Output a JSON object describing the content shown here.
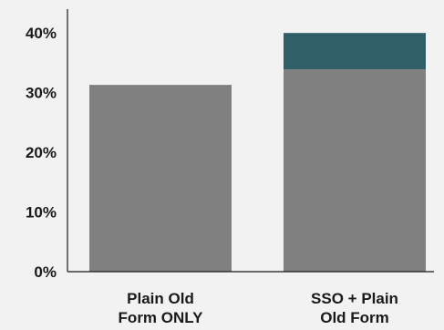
{
  "chart_data": {
    "type": "bar",
    "stacked": true,
    "categories": [
      "Plain Old Form ONLY",
      "SSO + Plain Old Form"
    ],
    "category_label_lines": [
      [
        "Plain Old",
        "Form ONLY"
      ],
      [
        "SSO + Plain",
        "Old Form"
      ]
    ],
    "series": [
      {
        "values": [
          31.3,
          33.9
        ],
        "color": "#808080"
      },
      {
        "values": [
          0,
          6.1
        ],
        "color": "#315f67"
      }
    ],
    "y_ticks": [
      0,
      10,
      20,
      30,
      40
    ],
    "y_tick_labels": [
      "0%",
      "10%",
      "20%",
      "30%",
      "40%"
    ],
    "ylim": [
      0,
      44
    ],
    "title": "",
    "xlabel": "",
    "ylabel": "",
    "grid": false,
    "legend": "none",
    "colors": {
      "background": "#f2f2f2",
      "axis": "#1a1a1a",
      "text": "#1a1a1a"
    }
  }
}
